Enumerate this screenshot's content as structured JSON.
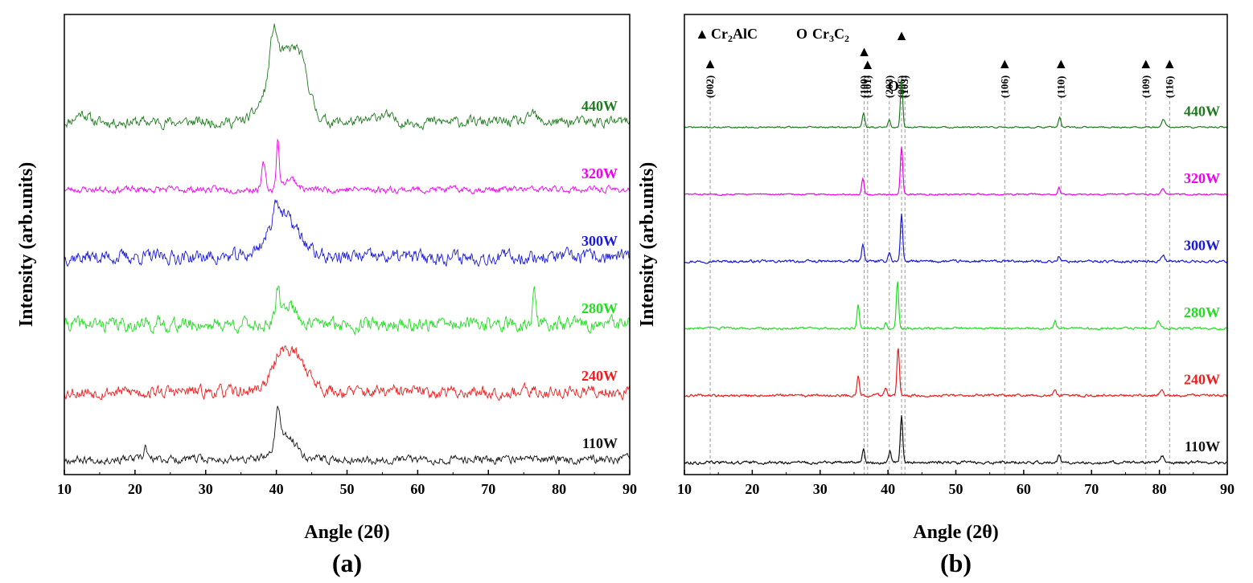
{
  "chart_data": [
    {
      "type": "line",
      "panel_label": "(a)",
      "xlabel": "Angle (2θ)",
      "ylabel": "Intensity (arb.units)",
      "xlim": [
        10,
        90
      ],
      "xticks": [
        10,
        20,
        30,
        40,
        50,
        60,
        70,
        80,
        90
      ],
      "grid": false,
      "series": [
        {
          "name": "440W",
          "color": "#1f7a1f",
          "baseline": 5,
          "amp": 0.13,
          "peaks": [
            [
              39.6,
              0.55,
              0.7
            ],
            [
              41.0,
              0.9,
              3.0
            ],
            [
              43.5,
              0.45,
              1.6
            ],
            [
              12.5,
              0.12,
              1.2
            ],
            [
              55,
              0.1,
              1.5
            ],
            [
              76.3,
              0.12,
              0.6
            ]
          ],
          "seed": 11
        },
        {
          "name": "320W",
          "color": "#ee00ee",
          "baseline": 4,
          "amp": 0.08,
          "peaks": [
            [
              38.2,
              0.35,
              0.35
            ],
            [
              40.2,
              0.65,
              0.3
            ],
            [
              42.0,
              0.15,
              1.2
            ]
          ],
          "seed": 23
        },
        {
          "name": "300W",
          "color": "#1a1ad6",
          "baseline": 3,
          "amp": 0.17,
          "peaks": [
            [
              41.0,
              0.55,
              3.0
            ],
            [
              40.0,
              0.3,
              0.6
            ]
          ],
          "seed": 37
        },
        {
          "name": "280W",
          "color": "#22dd22",
          "baseline": 2,
          "amp": 0.17,
          "peaks": [
            [
              40.2,
              0.42,
              0.35
            ],
            [
              41.8,
              0.28,
              1.5
            ],
            [
              76.5,
              0.42,
              0.35
            ]
          ],
          "seed": 41
        },
        {
          "name": "240W",
          "color": "#ee1c1c",
          "baseline": 1,
          "amp": 0.15,
          "peaks": [
            [
              42.0,
              0.55,
              3.0
            ],
            [
              40.5,
              0.15,
              0.8
            ]
          ],
          "seed": 53
        },
        {
          "name": "110W",
          "color": "#111111",
          "baseline": 0,
          "amp": 0.1,
          "peaks": [
            [
              40.2,
              0.5,
              0.5
            ],
            [
              41.5,
              0.3,
              2.0
            ],
            [
              21.5,
              0.18,
              0.3
            ]
          ],
          "seed": 67
        }
      ]
    },
    {
      "type": "line",
      "panel_label": "(b)",
      "xlabel": "Angle (2θ)",
      "ylabel": "Intensity (arb.units)",
      "xlim": [
        10,
        90
      ],
      "xticks": [
        10,
        20,
        30,
        40,
        50,
        60,
        70,
        80,
        90
      ],
      "grid": false,
      "legend": [
        {
          "symbol": "▲",
          "name": "Cr",
          "sub": "2",
          "rest": "AlC"
        },
        {
          "symbol": "O",
          "name": "Cr",
          "sub": "3",
          "rest": "C",
          "sub2": "2"
        }
      ],
      "reference_lines": [
        {
          "x": 13.8,
          "hkl": "(002)",
          "marker": "▲"
        },
        {
          "x": 36.5,
          "hkl": "(100)",
          "marker": "▲"
        },
        {
          "x": 37.0,
          "hkl": "(101)",
          "marker": "▲"
        },
        {
          "x": 40.2,
          "hkl": "(203)",
          "marker": "O"
        },
        {
          "x": 42.0,
          "hkl": "(006)",
          "marker": "▲"
        },
        {
          "x": 42.5,
          "hkl": "(103)",
          "marker": ""
        },
        {
          "x": 57.2,
          "hkl": "(106)",
          "marker": "▲"
        },
        {
          "x": 65.5,
          "hkl": "(110)",
          "marker": "▲"
        },
        {
          "x": 78.0,
          "hkl": "(109)",
          "marker": "▲"
        },
        {
          "x": 81.5,
          "hkl": "(116)",
          "marker": "▲"
        }
      ],
      "series": [
        {
          "name": "440W",
          "color": "#1f7a1f",
          "baseline": 5,
          "amp": 0.02,
          "peaks": [
            [
              36.4,
              0.22,
              0.25
            ],
            [
              40.2,
              0.12,
              0.25
            ],
            [
              42.0,
              0.72,
              0.25
            ],
            [
              65.3,
              0.15,
              0.25
            ],
            [
              80.6,
              0.12,
              0.4
            ]
          ],
          "seed": 71
        },
        {
          "name": "320W",
          "color": "#ee00ee",
          "baseline": 4,
          "amp": 0.02,
          "peaks": [
            [
              36.3,
              0.24,
              0.25
            ],
            [
              42.0,
              0.72,
              0.25
            ],
            [
              65.2,
              0.1,
              0.25
            ],
            [
              80.5,
              0.08,
              0.4
            ]
          ],
          "seed": 83
        },
        {
          "name": "300W",
          "color": "#1a1ad6",
          "baseline": 3,
          "amp": 0.035,
          "peaks": [
            [
              36.3,
              0.28,
              0.25
            ],
            [
              40.2,
              0.15,
              0.25
            ],
            [
              42.0,
              0.72,
              0.25
            ],
            [
              65.2,
              0.08,
              0.25
            ],
            [
              80.5,
              0.1,
              0.4
            ]
          ],
          "seed": 97
        },
        {
          "name": "280W",
          "color": "#22dd22",
          "baseline": 2,
          "amp": 0.03,
          "peaks": [
            [
              35.6,
              0.35,
              0.25
            ],
            [
              39.7,
              0.1,
              0.25
            ],
            [
              41.4,
              0.72,
              0.25
            ],
            [
              64.6,
              0.12,
              0.25
            ],
            [
              79.8,
              0.1,
              0.4
            ]
          ],
          "seed": 103
        },
        {
          "name": "240W",
          "color": "#ee1c1c",
          "baseline": 1,
          "amp": 0.035,
          "peaks": [
            [
              35.6,
              0.3,
              0.25
            ],
            [
              39.7,
              0.12,
              0.25
            ],
            [
              41.5,
              0.72,
              0.25
            ],
            [
              64.6,
              0.1,
              0.25
            ],
            [
              80.3,
              0.08,
              0.4
            ]
          ],
          "seed": 109
        },
        {
          "name": "110W",
          "color": "#111111",
          "baseline": 0,
          "amp": 0.04,
          "peaks": [
            [
              36.4,
              0.2,
              0.25
            ],
            [
              40.3,
              0.18,
              0.25
            ],
            [
              42.0,
              0.72,
              0.25
            ],
            [
              65.2,
              0.1,
              0.25
            ],
            [
              80.5,
              0.1,
              0.4
            ]
          ],
          "seed": 113
        }
      ]
    }
  ]
}
